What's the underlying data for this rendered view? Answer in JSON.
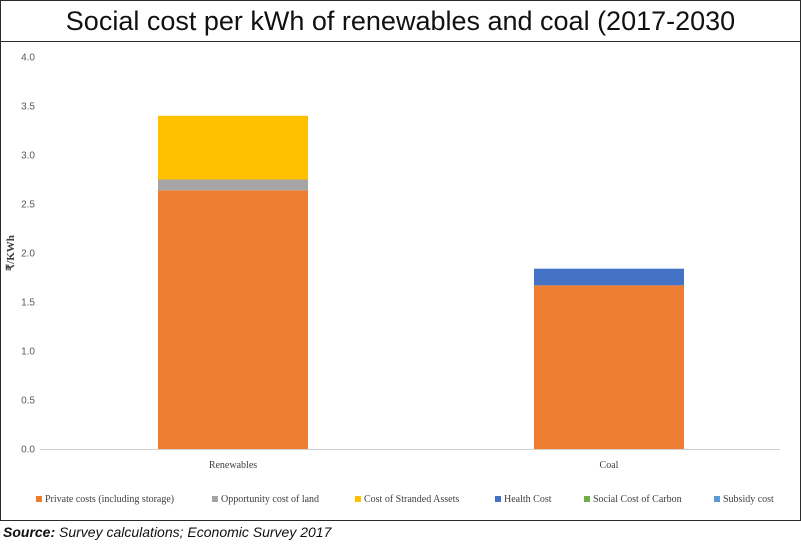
{
  "chart_data": {
    "type": "bar",
    "stacked": true,
    "title": "Social cost per kWh of renewables and coal (2017-2030",
    "ylabel": "₹/KWh",
    "xlabel": "",
    "ylim": [
      0,
      4.0
    ],
    "yticks": [
      "0.0",
      "0.5",
      "1.0",
      "1.5",
      "2.0",
      "2.5",
      "3.0",
      "3.5",
      "4.0"
    ],
    "categories": [
      "Renewables",
      "Coal"
    ],
    "series": [
      {
        "name": "Private costs (including storage)",
        "color": "#ED7D31",
        "values": [
          2.64,
          1.67
        ]
      },
      {
        "name": "Opportunity cost of land",
        "color": "#A5A5A5",
        "values": [
          0.11,
          0.0
        ]
      },
      {
        "name": "Cost of Stranded Assets",
        "color": "#FFC000",
        "values": [
          0.65,
          0.0
        ]
      },
      {
        "name": "Health Cost",
        "color": "#4472C4",
        "values": [
          0.0,
          0.17
        ]
      },
      {
        "name": "Social Cost of Carbon",
        "color": "#70AD47",
        "values": [
          0.0,
          0.0
        ]
      },
      {
        "name": "Subsidy cost",
        "color": "#5B9BD5",
        "values": [
          0.0,
          0.0
        ]
      }
    ],
    "legend_position": "bottom"
  },
  "source": {
    "label": "Source:",
    "text": "Survey calculations; Economic Survey 2017"
  }
}
